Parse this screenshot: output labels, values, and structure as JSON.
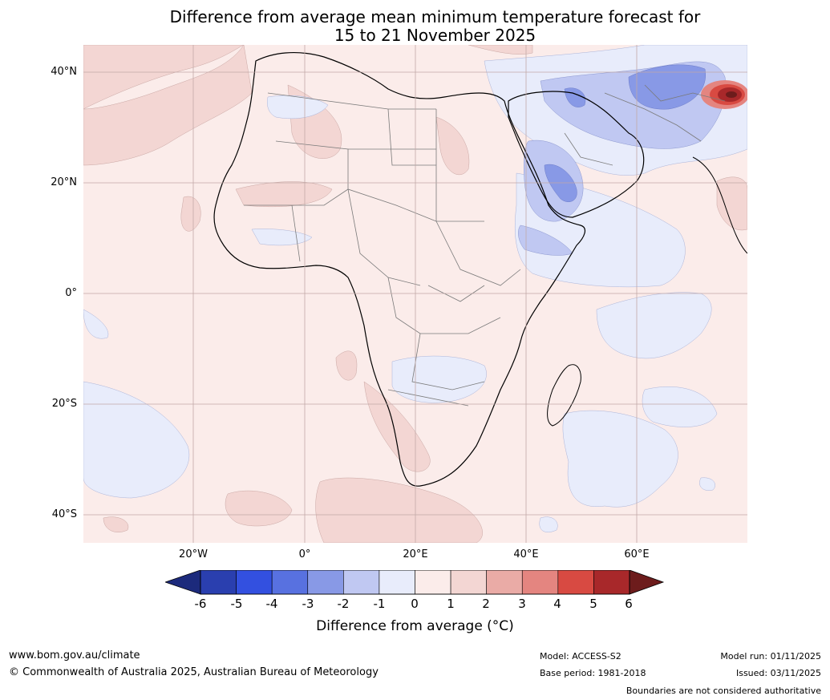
{
  "title": {
    "line1": "Difference from average mean minimum temperature forecast for",
    "line2": "15 to 21 November 2025"
  },
  "map": {
    "region": "Africa",
    "lat_labels": [
      "40°N",
      "20°N",
      "0°",
      "20°S",
      "40°S"
    ],
    "lon_labels": [
      "20°W",
      "0°",
      "20°E",
      "40°E",
      "60°E"
    ]
  },
  "colorbar": {
    "ticks": [
      "-6",
      "-5",
      "-4",
      "-3",
      "-2",
      "-1",
      "0",
      "1",
      "2",
      "3",
      "4",
      "5",
      "6"
    ],
    "label": "Difference from average ($^\\circ$C)",
    "label_display": "Difference from average (°C)",
    "colors": {
      "below_-6": "#1c2a7c",
      "-6_-5": "#2a3faf",
      "-5_-4": "#3350e0",
      "-4_-3": "#5871e0",
      "-3_-2": "#8899e6",
      "-2_-1": "#c0c8f2",
      "-1_0": "#e8ecfb",
      "0_1": "#fbecea",
      "1_2": "#f3d6d3",
      "2_3": "#eaaba6",
      "3_4": "#e48580",
      "4_5": "#d84a42",
      "5_6": "#a8282a",
      "above_6": "#6d1c1c"
    }
  },
  "footer": {
    "url": "www.bom.gov.au/climate",
    "copyright": "© Commonwealth of Australia 2025, Australian Bureau of Meteorology",
    "model": "Model: ACCESS-S2",
    "base_period": "Base period: 1981-2018",
    "model_run": "Model run: 01/11/2025",
    "issued": "Issued: 03/11/2025",
    "disclaimer": "Boundaries are not considered authoritative"
  }
}
